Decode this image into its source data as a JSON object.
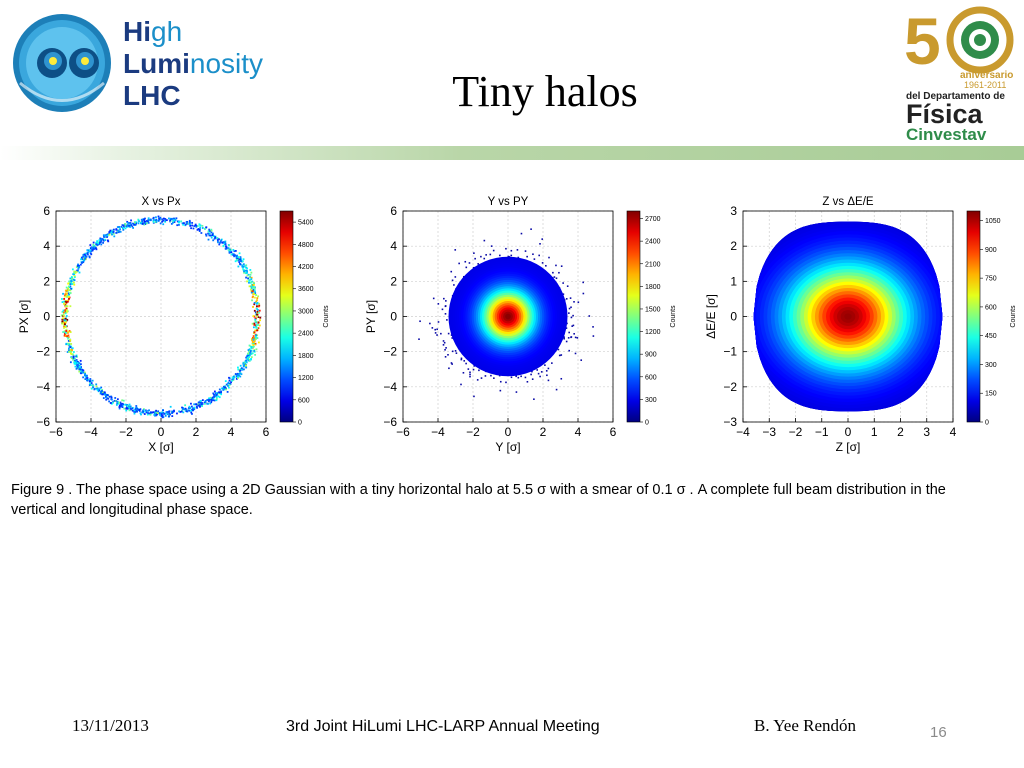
{
  "slide": {
    "title": "Tiny halos",
    "caption": "Figure 9 . The phase space using a 2D Gaussian  with a tiny horizontal halo at 5.5 σ with a smear of 0.1 σ .  A  complete  full beam  distribution in  the vertical and longitudinal phase  space.",
    "footer": {
      "date": "13/11/2013",
      "meeting": "3rd Joint HiLumi LHC-LARP Annual Meeting",
      "author": "B. Yee Rendón",
      "page": "16"
    }
  },
  "logos": {
    "left": {
      "words": [
        "High",
        "Luminosity",
        "LHC"
      ],
      "emphasis": [
        "Hi",
        "Lumi"
      ],
      "colors": {
        "primary": "#1b8fc9",
        "dark": "#1b3b80"
      }
    },
    "right": {
      "number": "50",
      "line1": "aniversario",
      "line2": "1961-2011",
      "line3": "del Departamento de",
      "line4": "Física",
      "line5": "Cinvestav",
      "colors": {
        "gold": "#c99a2e",
        "dark": "#222222",
        "green": "#2f8c4a"
      }
    }
  },
  "colors": {
    "title_band": "#a8cc96",
    "page_number": "#8a8a8a"
  },
  "chart_data": [
    {
      "type": "heatmap",
      "title": "X vs Px",
      "xlabel": "X [σ]",
      "ylabel": "PX [σ]",
      "xlim": [
        -6,
        6
      ],
      "ylim": [
        -6,
        6
      ],
      "xticks": [
        -6,
        -4,
        -2,
        0,
        2,
        4,
        6
      ],
      "yticks": [
        -6,
        -4,
        -2,
        0,
        2,
        4,
        6
      ],
      "grid": true,
      "colorbar": {
        "label": "Counts",
        "ticks": [
          0,
          600,
          1200,
          1800,
          2400,
          3000,
          3600,
          4200,
          4800,
          5400
        ],
        "max": 5700
      },
      "distribution": {
        "shape": "ring",
        "center": [
          0,
          0
        ],
        "radius": 5.5,
        "width": 0.1
      }
    },
    {
      "type": "heatmap",
      "title": "Y vs PY",
      "xlabel": "Y [σ]",
      "ylabel": "PY [σ]",
      "xlim": [
        -6,
        6
      ],
      "ylim": [
        -6,
        6
      ],
      "xticks": [
        -6,
        -4,
        -2,
        0,
        2,
        4,
        6
      ],
      "yticks": [
        -6,
        -4,
        -2,
        0,
        2,
        4,
        6
      ],
      "grid": true,
      "colorbar": {
        "label": "Counts",
        "ticks": [
          0,
          300,
          600,
          900,
          1200,
          1500,
          1800,
          2100,
          2400,
          2700
        ],
        "max": 2800
      },
      "distribution": {
        "shape": "gaussian",
        "center": [
          0,
          0
        ],
        "sigma": [
          1,
          1
        ],
        "extent": 5.3
      }
    },
    {
      "type": "heatmap",
      "title": "Z vs ΔE/E",
      "xlabel": "Z [σ]",
      "ylabel": "ΔE/E [σ]",
      "xlim": [
        -4,
        4
      ],
      "ylim": [
        -3,
        3
      ],
      "xticks": [
        -4,
        -3,
        -2,
        -1,
        0,
        1,
        2,
        3,
        4
      ],
      "yticks": [
        -3,
        -2,
        -1,
        0,
        1,
        2,
        3
      ],
      "grid": true,
      "colorbar": {
        "label": "Counts",
        "ticks": [
          0,
          150,
          300,
          450,
          600,
          750,
          900,
          1050
        ],
        "max": 1100
      },
      "distribution": {
        "shape": "bucket",
        "center": [
          0,
          0
        ],
        "sigma": [
          1.4,
          0.9
        ],
        "z_range": [
          -3.6,
          3.6
        ],
        "de_max": 2.7
      }
    }
  ]
}
